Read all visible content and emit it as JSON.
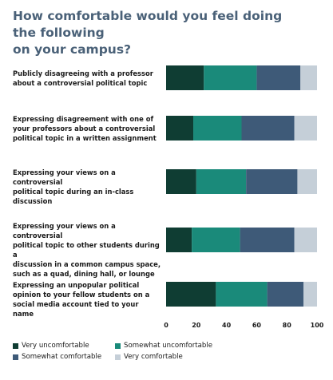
{
  "chart_data": {
    "type": "bar",
    "stacked": true,
    "orientation": "horizontal",
    "title": "How comfortable would you feel doing the following on your campus?",
    "categories": [
      "Publicly disagreeing with a professor about a controversial political topic",
      "Expressing disagreement with one of your professors about a controversial political topic in a written assignment",
      "Expressing your views on a controversial political topic during an in-class discussion",
      "Expressing your views on a controversial political topic to other students during a discussion in a common campus space, such as a quad, dining hall, or lounge",
      "Expressing an unpopular political opinion to your fellow students on a social media account tied to your name"
    ],
    "series": [
      {
        "name": "Very uncomfortable",
        "color": "#0f3d33",
        "values": [
          25,
          18,
          20,
          17,
          33
        ]
      },
      {
        "name": "Somewhat uncomfortable",
        "color": "#1a8a7a",
        "values": [
          35,
          32,
          33,
          32,
          34
        ]
      },
      {
        "name": "Somewhat comfortable",
        "color": "#3e5a78",
        "values": [
          29,
          35,
          34,
          36,
          24
        ]
      },
      {
        "name": "Very comfortable",
        "color": "#c5cfd8",
        "values": [
          11,
          15,
          13,
          15,
          9
        ]
      }
    ],
    "xticks": [
      0,
      20,
      40,
      60,
      80,
      100
    ],
    "xlim": [
      0,
      100
    ],
    "grid": false,
    "legend_position": "bottom"
  },
  "labels": {
    "title_line1": "How comfortable would you feel doing the following",
    "title_line2": "on your campus?",
    "categories_lines": [
      [
        "Publicly disagreeing with a professor",
        "about a controversial political topic"
      ],
      [
        "Expressing disagreement with one of",
        "your professors about a controversial",
        "political topic in a written assignment"
      ],
      [
        "Expressing your views on a controversial",
        "political topic during an in-class",
        "discussion"
      ],
      [
        "Expressing your views on a controversial",
        "political topic to other students during a",
        "discussion in a common campus space,",
        "such as a quad, dining hall, or lounge"
      ],
      [
        "Expressing an unpopular political",
        "opinion to your fellow students on a",
        "social media account tied to your name"
      ]
    ]
  }
}
